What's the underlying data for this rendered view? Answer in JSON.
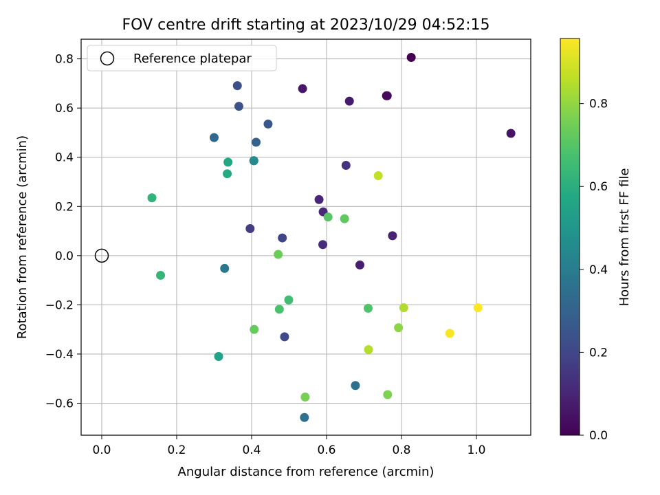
{
  "chart_data": {
    "type": "scatter",
    "title": "FOV centre drift starting at 2023/10/29 04:52:15",
    "xlabel": "Angular distance from reference (arcmin)",
    "ylabel": "Rotation from reference (arcmin)",
    "xlim": [
      -0.055,
      1.145
    ],
    "ylim": [
      -0.73,
      0.88
    ],
    "xticks": [
      0.0,
      0.2,
      0.4,
      0.6,
      0.8,
      1.0
    ],
    "xtick_labels": [
      "0.0",
      "0.2",
      "0.4",
      "0.6",
      "0.8",
      "1.0"
    ],
    "yticks": [
      -0.6,
      -0.4,
      -0.2,
      0.0,
      0.2,
      0.4,
      0.6,
      0.8
    ],
    "ytick_labels": [
      "−0.6",
      "−0.4",
      "−0.2",
      "0.0",
      "0.2",
      "0.4",
      "0.6",
      "0.8"
    ],
    "grid": true,
    "legend": {
      "placement": "top-left",
      "entries": [
        "Reference platepar"
      ]
    },
    "reference_point": {
      "x": 0.0,
      "y": 0.0
    },
    "colorbar": {
      "label": "Hours from first FF file",
      "colormap": "viridis",
      "range": [
        0.0,
        0.957
      ],
      "ticks": [
        0.0,
        0.2,
        0.4,
        0.6,
        0.8
      ],
      "tick_labels": [
        "0.0",
        "0.2",
        "0.4",
        "0.6",
        "0.8"
      ]
    },
    "points": [
      {
        "x": 0.826,
        "y": 0.806,
        "hours": 0.0
      },
      {
        "x": 0.76,
        "y": 0.65,
        "hours": 0.0
      },
      {
        "x": 0.762,
        "y": 0.65,
        "hours": 0.02
      },
      {
        "x": 1.092,
        "y": 0.497,
        "hours": 0.05
      },
      {
        "x": 0.536,
        "y": 0.679,
        "hours": 0.06
      },
      {
        "x": 0.661,
        "y": 0.628,
        "hours": 0.07
      },
      {
        "x": 0.689,
        "y": -0.038,
        "hours": 0.08
      },
      {
        "x": 0.776,
        "y": 0.081,
        "hours": 0.09
      },
      {
        "x": 0.58,
        "y": 0.228,
        "hours": 0.1
      },
      {
        "x": 0.591,
        "y": 0.178,
        "hours": 0.11
      },
      {
        "x": 0.59,
        "y": 0.045,
        "hours": 0.12
      },
      {
        "x": 0.652,
        "y": 0.367,
        "hours": 0.14
      },
      {
        "x": 0.396,
        "y": 0.11,
        "hours": 0.17
      },
      {
        "x": 0.482,
        "y": 0.072,
        "hours": 0.19
      },
      {
        "x": 0.488,
        "y": -0.33,
        "hours": 0.21
      },
      {
        "x": 0.362,
        "y": 0.691,
        "hours": 0.23
      },
      {
        "x": 0.366,
        "y": 0.607,
        "hours": 0.24
      },
      {
        "x": 0.444,
        "y": 0.535,
        "hours": 0.26
      },
      {
        "x": 0.412,
        "y": 0.461,
        "hours": 0.3
      },
      {
        "x": 0.3,
        "y": 0.48,
        "hours": 0.32
      },
      {
        "x": 0.406,
        "y": 0.386,
        "hours": 0.34
      },
      {
        "x": 0.677,
        "y": -0.528,
        "hours": 0.35
      },
      {
        "x": 0.541,
        "y": -0.658,
        "hours": 0.36
      },
      {
        "x": 0.328,
        "y": -0.052,
        "hours": 0.38
      },
      {
        "x": 0.406,
        "y": 0.386,
        "hours": 0.45
      },
      {
        "x": 0.312,
        "y": -0.41,
        "hours": 0.55
      },
      {
        "x": 0.337,
        "y": 0.38,
        "hours": 0.57
      },
      {
        "x": 0.335,
        "y": 0.333,
        "hours": 0.58
      },
      {
        "x": 0.134,
        "y": 0.235,
        "hours": 0.62
      },
      {
        "x": 0.157,
        "y": -0.08,
        "hours": 0.63
      },
      {
        "x": 0.499,
        "y": -0.18,
        "hours": 0.66
      },
      {
        "x": 0.474,
        "y": -0.218,
        "hours": 0.68
      },
      {
        "x": 0.711,
        "y": -0.214,
        "hours": 0.69
      },
      {
        "x": 0.604,
        "y": 0.157,
        "hours": 0.7
      },
      {
        "x": 0.648,
        "y": 0.15,
        "hours": 0.72
      },
      {
        "x": 0.407,
        "y": -0.3,
        "hours": 0.73
      },
      {
        "x": 0.471,
        "y": 0.005,
        "hours": 0.74
      },
      {
        "x": 0.543,
        "y": -0.575,
        "hours": 0.76
      },
      {
        "x": 0.763,
        "y": -0.565,
        "hours": 0.77
      },
      {
        "x": 0.792,
        "y": -0.293,
        "hours": 0.79
      },
      {
        "x": 0.806,
        "y": -0.212,
        "hours": 0.84
      },
      {
        "x": 0.712,
        "y": -0.382,
        "hours": 0.85
      },
      {
        "x": 0.738,
        "y": 0.325,
        "hours": 0.87
      },
      {
        "x": 0.929,
        "y": -0.316,
        "hours": 0.95
      },
      {
        "x": 1.004,
        "y": -0.212,
        "hours": 0.957
      }
    ]
  }
}
